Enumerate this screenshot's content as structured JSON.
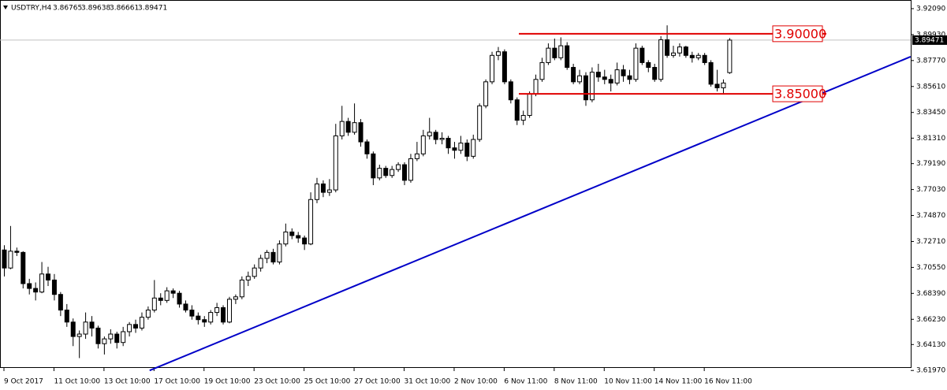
{
  "chart_data": {
    "type": "candlestick",
    "symbol": "USDTRY,H4",
    "bull_color": "#ffffff",
    "bear_color": "#000000",
    "ylim": [
      3.6146,
      3.9281
    ],
    "yticks": [
      {
        "value": 3.9209,
        "label": "3.92090"
      },
      {
        "value": 3.8993,
        "label": "3.89930"
      },
      {
        "value": 3.8777,
        "label": "3.87770"
      },
      {
        "value": 3.8561,
        "label": "3.85610"
      },
      {
        "value": 3.8345,
        "label": "3.83450"
      },
      {
        "value": 3.8131,
        "label": "3.81310"
      },
      {
        "value": 3.7919,
        "label": "3.79190"
      },
      {
        "value": 3.7703,
        "label": "3.77030"
      },
      {
        "value": 3.7487,
        "label": "3.74870"
      },
      {
        "value": 3.7271,
        "label": "3.72710"
      },
      {
        "value": 3.7055,
        "label": "3.70550"
      },
      {
        "value": 3.6839,
        "label": "3.68390"
      },
      {
        "value": 3.6623,
        "label": "3.66230"
      },
      {
        "value": 3.6413,
        "label": "3.64130"
      },
      {
        "value": 3.6197,
        "label": "3.61970"
      }
    ],
    "xticks": [
      {
        "value": 0,
        "label": "9 Oct 2017"
      },
      {
        "value": 8,
        "label": "11 Oct 10:00"
      },
      {
        "value": 16,
        "label": "13 Oct 10:00"
      },
      {
        "value": 24,
        "label": "17 Oct 10:00"
      },
      {
        "value": 32,
        "label": "19 Oct 10:00"
      },
      {
        "value": 40,
        "label": "23 Oct 10:00"
      },
      {
        "value": 48,
        "label": "25 Oct 10:00"
      },
      {
        "value": 56,
        "label": "27 Oct 10:00"
      },
      {
        "value": 64,
        "label": "31 Oct 10:00"
      },
      {
        "value": 72,
        "label": "2 Nov 10:00"
      },
      {
        "value": 80,
        "label": "6 Nov 11:00"
      },
      {
        "value": 88,
        "label": "8 Nov 11:00"
      },
      {
        "value": 96,
        "label": "10 Nov 11:00"
      },
      {
        "value": 104,
        "label": "14 Nov 11:00"
      },
      {
        "value": 112,
        "label": "16 Nov 11:00"
      }
    ],
    "levels": [
      {
        "value": 3.9,
        "label": "3.90000",
        "color": "#e00000"
      },
      {
        "value": 3.85,
        "label": "3.85000",
        "color": "#e00000"
      }
    ],
    "trendline": {
      "x": [
        23.3,
        145
      ],
      "y": [
        3.6197,
        3.8809
      ],
      "color": "#0000c8"
    },
    "candles": [
      [
        3.72,
        3.724,
        3.698,
        3.705
      ],
      [
        3.705,
        3.74,
        3.704,
        3.719
      ],
      [
        3.719,
        3.722,
        3.715,
        3.718
      ],
      [
        3.718,
        3.719,
        3.688,
        3.692
      ],
      [
        3.692,
        3.696,
        3.683,
        3.688
      ],
      [
        3.688,
        3.693,
        3.678,
        3.685
      ],
      [
        3.685,
        3.71,
        3.684,
        3.7
      ],
      [
        3.7,
        3.706,
        3.69,
        3.695
      ],
      [
        3.695,
        3.7,
        3.678,
        3.683
      ],
      [
        3.683,
        3.685,
        3.665,
        3.67
      ],
      [
        3.67,
        3.675,
        3.656,
        3.66
      ],
      [
        3.66,
        3.663,
        3.64,
        3.648
      ],
      [
        3.648,
        3.653,
        3.63,
        3.65
      ],
      [
        3.65,
        3.668,
        3.646,
        3.66
      ],
      [
        3.66,
        3.665,
        3.648,
        3.655
      ],
      [
        3.655,
        3.657,
        3.638,
        3.642
      ],
      [
        3.642,
        3.648,
        3.633,
        3.646
      ],
      [
        3.646,
        3.654,
        3.642,
        3.65
      ],
      [
        3.65,
        3.652,
        3.638,
        3.643
      ],
      [
        3.643,
        3.656,
        3.64,
        3.652
      ],
      [
        3.652,
        3.66,
        3.648,
        3.658
      ],
      [
        3.658,
        3.662,
        3.651,
        3.655
      ],
      [
        3.655,
        3.668,
        3.653,
        3.664
      ],
      [
        3.664,
        3.673,
        3.662,
        3.67
      ],
      [
        3.67,
        3.695,
        3.668,
        3.68
      ],
      [
        3.68,
        3.684,
        3.674,
        3.678
      ],
      [
        3.678,
        3.689,
        3.676,
        3.686
      ],
      [
        3.686,
        3.688,
        3.68,
        3.684
      ],
      [
        3.684,
        3.686,
        3.672,
        3.675
      ],
      [
        3.675,
        3.678,
        3.668,
        3.67
      ],
      [
        3.67,
        3.674,
        3.662,
        3.665
      ],
      [
        3.665,
        3.668,
        3.658,
        3.662
      ],
      [
        3.662,
        3.665,
        3.656,
        3.66
      ],
      [
        3.66,
        3.67,
        3.658,
        3.668
      ],
      [
        3.668,
        3.676,
        3.665,
        3.672
      ],
      [
        3.672,
        3.674,
        3.658,
        3.66
      ],
      [
        3.66,
        3.681,
        3.659,
        3.679
      ],
      [
        3.679,
        3.683,
        3.675,
        3.681
      ],
      [
        3.681,
        3.698,
        3.679,
        3.695
      ],
      [
        3.695,
        3.702,
        3.69,
        3.698
      ],
      [
        3.698,
        3.708,
        3.696,
        3.705
      ],
      [
        3.705,
        3.716,
        3.702,
        3.713
      ],
      [
        3.713,
        3.72,
        3.709,
        3.718
      ],
      [
        3.718,
        3.721,
        3.708,
        3.71
      ],
      [
        3.71,
        3.728,
        3.708,
        3.725
      ],
      [
        3.725,
        3.742,
        3.723,
        3.735
      ],
      [
        3.735,
        3.738,
        3.729,
        3.732
      ],
      [
        3.732,
        3.735,
        3.726,
        3.73
      ],
      [
        3.73,
        3.732,
        3.72,
        3.725
      ],
      [
        3.725,
        3.768,
        3.724,
        3.762
      ],
      [
        3.762,
        3.78,
        3.759,
        3.775
      ],
      [
        3.775,
        3.778,
        3.764,
        3.768
      ],
      [
        3.768,
        3.779,
        3.765,
        3.77
      ],
      [
        3.77,
        3.825,
        3.768,
        3.815
      ],
      [
        3.815,
        3.84,
        3.812,
        3.827
      ],
      [
        3.827,
        3.83,
        3.815,
        3.818
      ],
      [
        3.818,
        3.842,
        3.816,
        3.826
      ],
      [
        3.826,
        3.829,
        3.806,
        3.81
      ],
      [
        3.81,
        3.812,
        3.796,
        3.8
      ],
      [
        3.8,
        3.802,
        3.774,
        3.78
      ],
      [
        3.78,
        3.791,
        3.778,
        3.788
      ],
      [
        3.788,
        3.79,
        3.78,
        3.782
      ],
      [
        3.782,
        3.79,
        3.78,
        3.787
      ],
      [
        3.787,
        3.793,
        3.785,
        3.791
      ],
      [
        3.791,
        3.793,
        3.774,
        3.778
      ],
      [
        3.778,
        3.8,
        3.776,
        3.796
      ],
      [
        3.796,
        3.81,
        3.794,
        3.8
      ],
      [
        3.8,
        3.82,
        3.798,
        3.815
      ],
      [
        3.815,
        3.83,
        3.812,
        3.818
      ],
      [
        3.818,
        3.82,
        3.808,
        3.812
      ],
      [
        3.812,
        3.818,
        3.808,
        3.813
      ],
      [
        3.813,
        3.815,
        3.8,
        3.805
      ],
      [
        3.805,
        3.81,
        3.796,
        3.803
      ],
      [
        3.803,
        3.815,
        3.8,
        3.809
      ],
      [
        3.809,
        3.812,
        3.794,
        3.798
      ],
      [
        3.798,
        3.816,
        3.796,
        3.812
      ],
      [
        3.812,
        3.842,
        3.81,
        3.84
      ],
      [
        3.84,
        3.862,
        3.838,
        3.86
      ],
      [
        3.86,
        3.885,
        3.858,
        3.882
      ],
      [
        3.882,
        3.889,
        3.878,
        3.885
      ],
      [
        3.885,
        3.887,
        3.858,
        3.86
      ],
      [
        3.86,
        3.862,
        3.842,
        3.845
      ],
      [
        3.845,
        3.847,
        3.824,
        3.828
      ],
      [
        3.828,
        3.836,
        3.824,
        3.832
      ],
      [
        3.832,
        3.852,
        3.83,
        3.85
      ],
      [
        3.85,
        3.866,
        3.848,
        3.862
      ],
      [
        3.862,
        3.88,
        3.86,
        3.876
      ],
      [
        3.876,
        3.892,
        3.874,
        3.888
      ],
      [
        3.888,
        3.896,
        3.878,
        3.88
      ],
      [
        3.88,
        3.897,
        3.878,
        3.89
      ],
      [
        3.89,
        3.893,
        3.87,
        3.872
      ],
      [
        3.872,
        3.875,
        3.858,
        3.86
      ],
      [
        3.86,
        3.87,
        3.858,
        3.865
      ],
      [
        3.865,
        3.868,
        3.84,
        3.845
      ],
      [
        3.845,
        3.872,
        3.843,
        3.868
      ],
      [
        3.868,
        3.875,
        3.86,
        3.864
      ],
      [
        3.864,
        3.87,
        3.858,
        3.862
      ],
      [
        3.862,
        3.866,
        3.852,
        3.859
      ],
      [
        3.859,
        3.876,
        3.857,
        3.87
      ],
      [
        3.87,
        3.874,
        3.86,
        3.865
      ],
      [
        3.865,
        3.87,
        3.858,
        3.862
      ],
      [
        3.862,
        3.892,
        3.86,
        3.888
      ],
      [
        3.888,
        3.89,
        3.874,
        3.876
      ],
      [
        3.876,
        3.878,
        3.868,
        3.872
      ],
      [
        3.872,
        3.875,
        3.86,
        3.862
      ],
      [
        3.862,
        3.898,
        3.86,
        3.895
      ],
      [
        3.895,
        3.907,
        3.88,
        3.882
      ],
      [
        3.882,
        3.89,
        3.88,
        3.884
      ],
      [
        3.884,
        3.892,
        3.881,
        3.889
      ],
      [
        3.889,
        3.89,
        3.88,
        3.882
      ],
      [
        3.882,
        3.885,
        3.876,
        3.88
      ],
      [
        3.88,
        3.884,
        3.878,
        3.882
      ],
      [
        3.882,
        3.884,
        3.874,
        3.876
      ],
      [
        3.876,
        3.878,
        3.856,
        3.858
      ],
      [
        3.858,
        3.87,
        3.852,
        3.855
      ],
      [
        3.855,
        3.862,
        3.85,
        3.859
      ],
      [
        3.86765,
        3.89638,
        3.86661,
        3.89471
      ]
    ]
  }
}
